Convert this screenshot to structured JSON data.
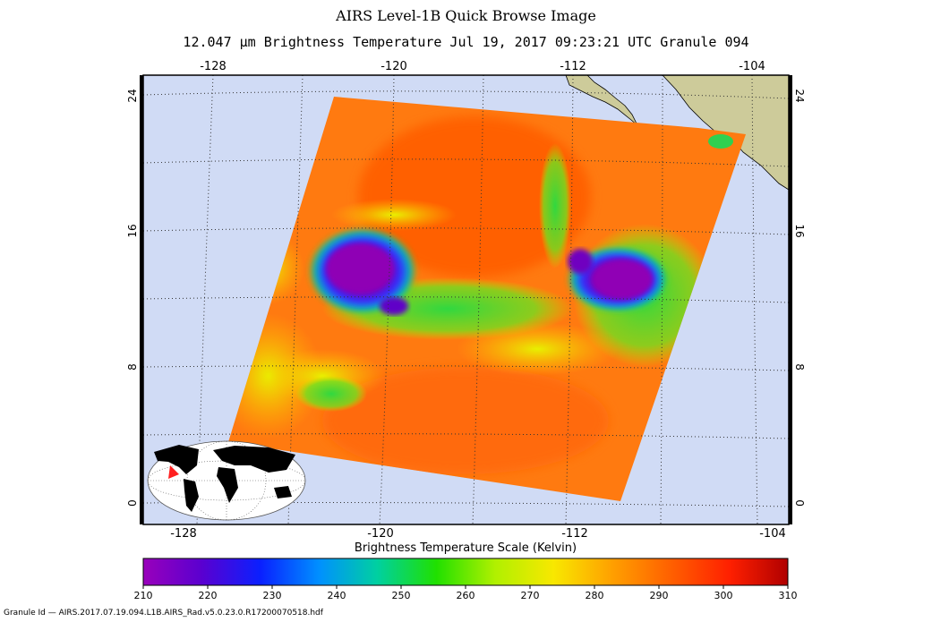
{
  "header": {
    "title": "AIRS Level-1B Quick Browse Image",
    "subtitle": "12.047 μm Brightness Temperature   Jul 19, 2017 09:23:21 UTC  Granule 094"
  },
  "map": {
    "lon_ticks": [
      "-128",
      "-120",
      "-112",
      "-104"
    ],
    "lat_ticks": [
      "24",
      "16",
      "8",
      "0"
    ],
    "colors": {
      "ocean": "#d0dbf5",
      "land": "#cdcb9a",
      "grid": "#333333"
    }
  },
  "colorbar": {
    "title": "Brightness Temperature Scale (Kelvin)",
    "ticks": [
      "210",
      "220",
      "230",
      "240",
      "250",
      "260",
      "270",
      "280",
      "290",
      "300",
      "310"
    ],
    "colors": [
      "#9900bb",
      "#5a00d0",
      "#0a20ff",
      "#0090ff",
      "#00d0a0",
      "#20e000",
      "#b0f000",
      "#f8e800",
      "#ffa000",
      "#ff6000",
      "#ff2000",
      "#b00000"
    ]
  },
  "footer": {
    "granule_id": "Granule Id — AIRS.2017.07.19.094.L1B.AIRS_Rad.v5.0.23.0.R17200070518.hdf"
  }
}
